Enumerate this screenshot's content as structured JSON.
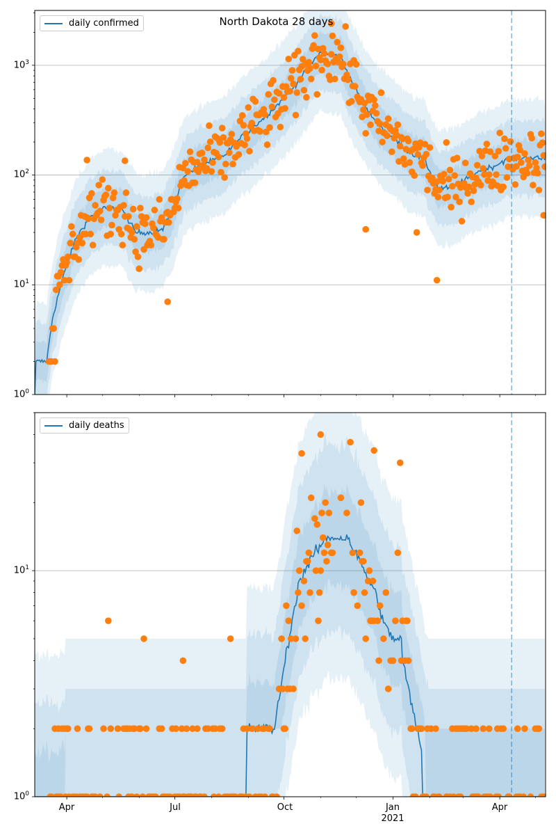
{
  "title": "North Dakota 28 days",
  "colors": {
    "line": "#1f77b4",
    "points": "#ff7f0e",
    "band": "#1f77b4",
    "grid": "#b0b0b0",
    "vline": "#1f77b4"
  },
  "chart_data": [
    {
      "type": "line",
      "legend": "daily confirmed",
      "legend_placement": "top-left",
      "yscale": "log",
      "ylim": [
        1,
        3162
      ],
      "x_unit": "days since 2020-03-05",
      "xlim": [
        0,
        430.6
      ],
      "vline_day": 402,
      "yticks": [
        {
          "base": "10",
          "exp": "0",
          "value": 1
        },
        {
          "base": "10",
          "exp": "1",
          "value": 10
        },
        {
          "base": "10",
          "exp": "2",
          "value": 100
        },
        {
          "base": "10",
          "exp": "3",
          "value": 1000
        }
      ],
      "ci_factors": [
        1.5,
        2.2,
        3.4
      ],
      "line": [
        [
          0,
          1
        ],
        [
          1,
          2
        ],
        [
          10,
          2
        ],
        [
          15,
          5
        ],
        [
          23,
          11
        ],
        [
          35,
          27
        ],
        [
          47,
          42
        ],
        [
          59,
          50
        ],
        [
          73,
          50
        ],
        [
          85,
          30
        ],
        [
          97,
          30
        ],
        [
          108,
          32
        ],
        [
          117,
          50
        ],
        [
          126,
          100
        ],
        [
          141,
          125
        ],
        [
          158,
          145
        ],
        [
          176,
          230
        ],
        [
          193,
          330
        ],
        [
          211,
          510
        ],
        [
          228,
          860
        ],
        [
          240,
          1300
        ],
        [
          258,
          1200
        ],
        [
          269,
          640
        ],
        [
          281,
          380
        ],
        [
          293,
          265
        ],
        [
          304,
          210
        ],
        [
          316,
          160
        ],
        [
          328,
          140
        ],
        [
          340,
          76
        ],
        [
          351,
          76
        ],
        [
          363,
          90
        ],
        [
          375,
          110
        ],
        [
          387,
          120
        ],
        [
          398,
          140
        ],
        [
          416,
          145
        ],
        [
          430,
          140
        ]
      ],
      "outliers": [
        [
          44,
          137
        ],
        [
          76,
          135
        ],
        [
          112,
          7
        ],
        [
          250,
          2400
        ],
        [
          279,
          32
        ],
        [
          339,
          11
        ],
        [
          322,
          30
        ],
        [
          429,
          43
        ]
      ]
    },
    {
      "type": "line",
      "legend": "daily deaths",
      "legend_placement": "top-left",
      "yscale": "log",
      "ylim": [
        1,
        50
      ],
      "x_unit": "days since 2020-03-05",
      "xlim": [
        0,
        430.6
      ],
      "vline_day": 402,
      "yticks": [
        {
          "base": "10",
          "exp": "0",
          "value": 1
        },
        {
          "base": "10",
          "exp": "1",
          "value": 10
        }
      ],
      "ci_factors": [
        1.6,
        2.6,
        4.2
      ],
      "line": [
        [
          0,
          1
        ],
        [
          178,
          1
        ],
        [
          179,
          2
        ],
        [
          202,
          2
        ],
        [
          211,
          4
        ],
        [
          223,
          9
        ],
        [
          234,
          11.5
        ],
        [
          246,
          14
        ],
        [
          264,
          14
        ],
        [
          272,
          11.5
        ],
        [
          287,
          8
        ],
        [
          295,
          5.7
        ],
        [
          302,
          5
        ],
        [
          309,
          5
        ],
        [
          310,
          4
        ],
        [
          322,
          2
        ],
        [
          334,
          1
        ],
        [
          430,
          1
        ]
      ],
      "outliers": [
        [
          62,
          6
        ],
        [
          92,
          5
        ],
        [
          125,
          4
        ],
        [
          165,
          5
        ],
        [
          225,
          33
        ],
        [
          241,
          40
        ],
        [
          251,
          58
        ],
        [
          266,
          37
        ],
        [
          286,
          34
        ],
        [
          308,
          30
        ]
      ]
    }
  ],
  "xticks": [
    {
      "day": 27,
      "label": "Apr"
    },
    {
      "day": 118,
      "label": "Jul"
    },
    {
      "day": 210,
      "label": "Oct"
    },
    {
      "day": 302,
      "label": "Jan",
      "sub": "2021"
    },
    {
      "day": 392,
      "label": "Apr"
    }
  ],
  "minor_xticks": [
    57,
    88,
    149,
    180,
    241,
    271,
    333,
    361,
    422
  ]
}
